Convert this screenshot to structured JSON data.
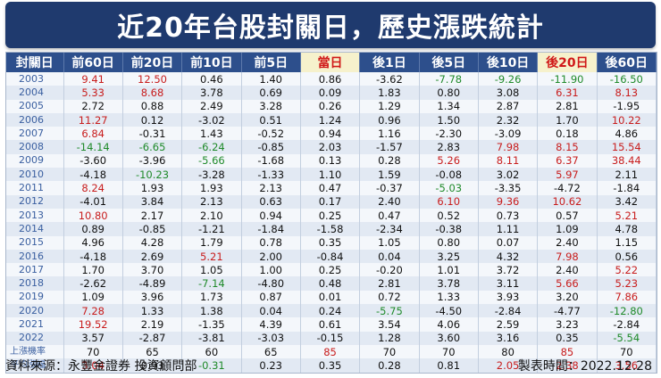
{
  "title": "近20年台股封關日，歷史漲跌統計",
  "headers": [
    "封關日",
    "前60日",
    "前20日",
    "前10日",
    "前5日",
    "當日",
    "後1日",
    "後5日",
    "後10日",
    "後20日",
    "後60日"
  ],
  "highlight_headers": [
    5,
    9
  ],
  "colors": {
    "title_bg": "#1f3a6e",
    "header_bg": "#2d4f8c",
    "up": "#c81d1d",
    "down": "#1f8a2a",
    "year": "#3a5fa0"
  },
  "rows": [
    [
      "2003",
      "9.41",
      "12.50",
      "0.46",
      "1.40",
      "0.86",
      "-3.62",
      "-7.78",
      "-9.26",
      "-11.90",
      "-16.50"
    ],
    [
      "2004",
      "5.33",
      "8.68",
      "3.78",
      "0.69",
      "0.09",
      "1.83",
      "0.80",
      "3.08",
      "6.31",
      "8.13"
    ],
    [
      "2005",
      "2.72",
      "0.88",
      "2.49",
      "3.28",
      "0.26",
      "1.29",
      "1.34",
      "2.87",
      "2.81",
      "-1.95"
    ],
    [
      "2006",
      "11.27",
      "0.12",
      "-3.02",
      "0.51",
      "1.24",
      "0.96",
      "1.50",
      "2.32",
      "1.70",
      "10.22"
    ],
    [
      "2007",
      "6.84",
      "-0.31",
      "1.43",
      "-0.52",
      "0.94",
      "1.16",
      "-2.30",
      "-3.09",
      "0.18",
      "4.86"
    ],
    [
      "2008",
      "-14.14",
      "-6.65",
      "-6.24",
      "-0.85",
      "2.03",
      "-1.57",
      "2.83",
      "7.98",
      "8.15",
      "15.54"
    ],
    [
      "2009",
      "-3.60",
      "-3.96",
      "-5.66",
      "-1.68",
      "0.13",
      "0.28",
      "5.26",
      "8.11",
      "6.37",
      "38.44"
    ],
    [
      "2010",
      "-4.18",
      "-10.23",
      "-3.28",
      "-1.33",
      "1.10",
      "1.59",
      "-0.08",
      "3.02",
      "5.97",
      "2.11"
    ],
    [
      "2011",
      "8.24",
      "1.93",
      "1.93",
      "2.13",
      "0.47",
      "-0.37",
      "-5.03",
      "-3.35",
      "-4.72",
      "-1.84"
    ],
    [
      "2012",
      "-4.01",
      "3.84",
      "2.13",
      "0.63",
      "0.17",
      "2.40",
      "6.10",
      "9.36",
      "10.62",
      "3.42"
    ],
    [
      "2013",
      "10.80",
      "2.17",
      "2.10",
      "0.94",
      "0.25",
      "0.47",
      "0.52",
      "0.73",
      "0.57",
      "5.21"
    ],
    [
      "2014",
      "0.89",
      "-0.85",
      "-1.21",
      "-1.84",
      "-1.58",
      "-2.34",
      "-0.38",
      "1.11",
      "1.09",
      "4.78"
    ],
    [
      "2015",
      "4.96",
      "4.28",
      "1.79",
      "0.78",
      "0.35",
      "1.05",
      "0.80",
      "0.07",
      "2.40",
      "1.15"
    ],
    [
      "2016",
      "-4.18",
      "2.69",
      "5.21",
      "2.00",
      "-0.84",
      "0.04",
      "3.25",
      "4.32",
      "7.98",
      "0.56"
    ],
    [
      "2017",
      "1.70",
      "3.70",
      "1.05",
      "1.00",
      "0.25",
      "-0.20",
      "1.01",
      "3.72",
      "2.40",
      "5.22"
    ],
    [
      "2018",
      "-2.62",
      "-4.89",
      "-7.14",
      "-4.80",
      "0.48",
      "2.81",
      "3.78",
      "3.11",
      "5.66",
      "5.23"
    ],
    [
      "2019",
      "1.09",
      "3.96",
      "1.73",
      "0.87",
      "0.01",
      "0.72",
      "1.33",
      "3.93",
      "3.20",
      "7.86"
    ],
    [
      "2020",
      "7.28",
      "1.33",
      "1.38",
      "0.04",
      "0.24",
      "-5.75",
      "-4.50",
      "-2.84",
      "-4.77",
      "-12.80"
    ],
    [
      "2021",
      "19.52",
      "2.19",
      "-1.35",
      "4.39",
      "0.61",
      "3.54",
      "4.06",
      "2.59",
      "3.23",
      "-2.84"
    ],
    [
      "2022",
      "3.57",
      "-2.87",
      "-3.81",
      "-3.03",
      "-0.15",
      "1.28",
      "3.60",
      "3.16",
      "0.35",
      "-5.54"
    ],
    [
      "上漲機率",
      "70",
      "65",
      "60",
      "65",
      "85",
      "70",
      "70",
      "80",
      "85",
      "70"
    ],
    [
      "平均漲幅",
      "3.04",
      "0.93",
      "-0.31",
      "0.23",
      "0.35",
      "0.28",
      "0.81",
      "2.05",
      "2.38",
      "3.56"
    ]
  ],
  "colored_cells": {
    "red": [
      [
        0,
        1
      ],
      [
        0,
        2
      ],
      [
        1,
        1
      ],
      [
        1,
        2
      ],
      [
        1,
        9
      ],
      [
        1,
        10
      ],
      [
        3,
        1
      ],
      [
        3,
        10
      ],
      [
        4,
        1
      ],
      [
        5,
        8
      ],
      [
        5,
        9
      ],
      [
        5,
        10
      ],
      [
        6,
        7
      ],
      [
        6,
        8
      ],
      [
        6,
        9
      ],
      [
        6,
        10
      ],
      [
        7,
        9
      ],
      [
        8,
        1
      ],
      [
        9,
        7
      ],
      [
        9,
        8
      ],
      [
        9,
        9
      ],
      [
        10,
        1
      ],
      [
        10,
        10
      ],
      [
        13,
        3
      ],
      [
        13,
        9
      ],
      [
        14,
        10
      ],
      [
        15,
        9
      ],
      [
        15,
        10
      ],
      [
        16,
        10
      ],
      [
        17,
        1
      ],
      [
        18,
        1
      ],
      [
        20,
        5
      ],
      [
        20,
        9
      ],
      [
        21,
        1
      ],
      [
        21,
        8
      ],
      [
        21,
        9
      ],
      [
        21,
        10
      ]
    ],
    "green": [
      [
        0,
        7
      ],
      [
        0,
        8
      ],
      [
        0,
        9
      ],
      [
        0,
        10
      ],
      [
        5,
        1
      ],
      [
        5,
        2
      ],
      [
        5,
        3
      ],
      [
        6,
        3
      ],
      [
        7,
        2
      ],
      [
        8,
        7
      ],
      [
        15,
        3
      ],
      [
        17,
        6
      ],
      [
        17,
        10
      ],
      [
        19,
        10
      ],
      [
        21,
        3
      ]
    ]
  },
  "footer": {
    "source": "資料來源：永豐金證券 投資顧問部",
    "made": "製表時間：2022.12.28"
  }
}
